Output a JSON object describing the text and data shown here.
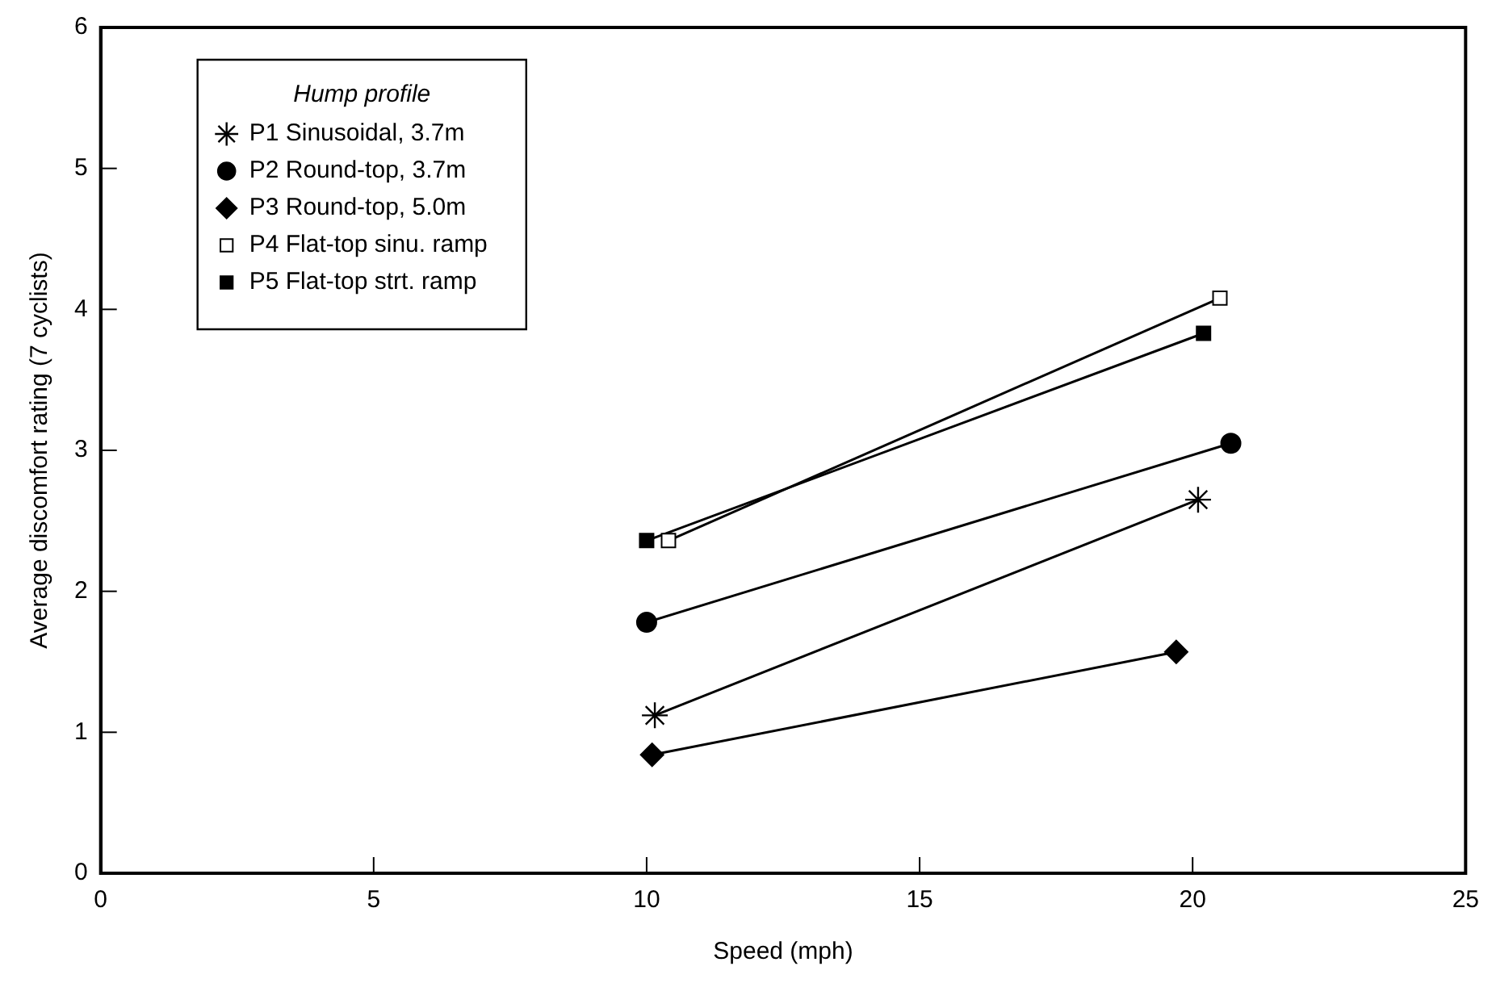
{
  "chart_data": {
    "type": "line",
    "xlabel": "Speed (mph)",
    "ylabel": "Average discomfort rating (7 cyclists)",
    "legend_title": "Hump profile",
    "legend": "top left",
    "grid": false,
    "xlim": [
      0,
      25
    ],
    "xticks": [
      0,
      5,
      10,
      15,
      20,
      25
    ],
    "ylim": [
      0,
      6
    ],
    "yticks": [
      0,
      1,
      2,
      3,
      4,
      5,
      6
    ],
    "series": [
      {
        "name": "P1 Sinusoidal, 3.7m",
        "color": "#000000",
        "marker": "cross",
        "x": [
          10.15,
          20.1
        ],
        "values": [
          1.12,
          2.65
        ]
      },
      {
        "name": "P2 Round-top, 3.7m",
        "color": "#000000",
        "marker": "circle",
        "x": [
          10.0,
          20.7
        ],
        "values": [
          1.78,
          3.05
        ]
      },
      {
        "name": "P3 Round-top, 5.0m",
        "color": "#000000",
        "marker": "diamond",
        "x": [
          10.1,
          19.7
        ],
        "values": [
          0.84,
          1.57
        ]
      },
      {
        "name": "P4 Flat-top sinu. ramp",
        "color": "#ffffff",
        "marker": "square",
        "x": [
          10.4,
          20.5
        ],
        "values": [
          2.36,
          4.08
        ]
      },
      {
        "name": "P5 Flat-top strt. ramp",
        "color": "#000000",
        "marker": "square",
        "x": [
          10.0,
          20.2
        ],
        "values": [
          2.36,
          3.83
        ]
      }
    ]
  }
}
